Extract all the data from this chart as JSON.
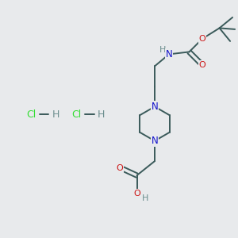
{
  "background_color": "#e8eaec",
  "atom_colors": {
    "C": "#000000",
    "N": "#1414cc",
    "O": "#cc1414",
    "H": "#6b8e8e",
    "Cl": "#33dd33"
  },
  "bond_color": "#3a5a5a",
  "figsize": [
    3.0,
    3.0
  ],
  "dpi": 100,
  "xlim": [
    0,
    10
  ],
  "ylim": [
    0,
    10
  ]
}
